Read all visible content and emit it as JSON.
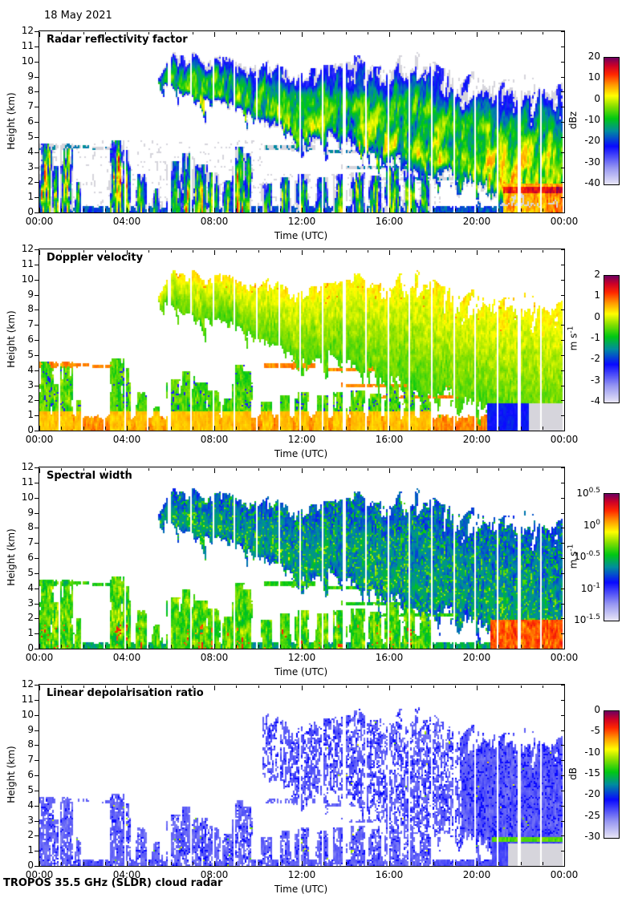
{
  "page": {
    "date": "18 May 2021",
    "footer": "TROPOS 35.5 GHz (SLDR) cloud radar"
  },
  "axes": {
    "x_label": "Time (UTC)",
    "y_label": "Height (km)",
    "x_tick_hours": [
      0,
      4,
      8,
      12,
      16,
      20,
      24
    ],
    "x_tick_labels": [
      "00:00",
      "04:00",
      "08:00",
      "12:00",
      "16:00",
      "20:00",
      "00:00"
    ],
    "x_minor_step_hours": 1,
    "y_range_km": [
      0,
      12
    ],
    "y_tick_step_km": 1
  },
  "panels": [
    {
      "id": "reflectivity",
      "title": "Radar reflectivity factor",
      "colorbar": {
        "unit": "dBz",
        "min": -40,
        "max": 20,
        "log": false,
        "tick_values": [
          20,
          10,
          0,
          -10,
          -20,
          -30,
          -40
        ]
      }
    },
    {
      "id": "velocity",
      "title": "Doppler velocity",
      "colorbar": {
        "unit": "m s⁻¹",
        "min": -4,
        "max": 2,
        "log": false,
        "tick_values": [
          2,
          1,
          0,
          -1,
          -2,
          -3,
          -4
        ]
      }
    },
    {
      "id": "width",
      "title": "Spectral width",
      "colorbar": {
        "unit": "m s⁻¹",
        "min": -1.5,
        "max": 0.5,
        "log": true,
        "tick_values": [
          0.5,
          0,
          -0.5,
          -1,
          -1.5
        ]
      }
    },
    {
      "id": "ldr",
      "title": "Linear depolarisation ratio",
      "colorbar": {
        "unit": "dB",
        "min": -30,
        "max": 0,
        "log": false,
        "tick_values": [
          0,
          -5,
          -10,
          -15,
          -20,
          -25,
          -30
        ]
      }
    }
  ],
  "chart_data": {
    "type": "heatmap",
    "description": "Four time-height cloud-radar panels for 18 May 2021: radar reflectivity factor (-40..20 dBz), Doppler velocity (-4..2 m/s), spectral width (10^-1.5..10^0.5 m/s, log scale), linear depolarisation ratio (-30..0 dB).",
    "x_range_hours": [
      0,
      24
    ],
    "y_range_km": [
      0,
      12
    ],
    "colormap_stops": [
      [
        0.0,
        230,
        228,
        246
      ],
      [
        0.13,
        150,
        150,
        242
      ],
      [
        0.3,
        10,
        10,
        255
      ],
      [
        0.42,
        0,
        140,
        160
      ],
      [
        0.52,
        0,
        200,
        20
      ],
      [
        0.62,
        140,
        225,
        0
      ],
      [
        0.7,
        255,
        255,
        0
      ],
      [
        0.79,
        255,
        150,
        0
      ],
      [
        0.87,
        255,
        40,
        0
      ],
      [
        0.94,
        205,
        0,
        40
      ],
      [
        1.0,
        115,
        0,
        95
      ]
    ],
    "undetected_grey": [
      214,
      213,
      220
    ],
    "scene": {
      "scan_gap_fraction": [
        0.9,
        0.985
      ],
      "high_cloud": {
        "start_hour": 5.4,
        "base_km": [
          [
            5.4,
            8.4
          ],
          [
            6.5,
            7.8
          ],
          [
            8,
            7.2
          ],
          [
            9.5,
            6.2
          ],
          [
            11,
            5.4
          ],
          [
            12.5,
            4.8
          ],
          [
            14,
            4.3
          ],
          [
            15,
            3.7
          ],
          [
            16,
            2.7
          ],
          [
            17,
            2.3
          ],
          [
            18.5,
            2.0
          ],
          [
            19.5,
            1.8
          ],
          [
            20.4,
            0.9
          ],
          [
            21.2,
            0.05
          ],
          [
            24,
            0
          ]
        ],
        "top_km": [
          [
            5.4,
            8.8
          ],
          [
            6,
            10.5
          ],
          [
            7,
            10.3
          ],
          [
            9,
            10.1
          ],
          [
            11,
            9.7
          ],
          [
            12,
            9.4
          ],
          [
            13,
            10.0
          ],
          [
            14,
            10.2
          ],
          [
            15,
            9.8
          ],
          [
            16,
            10.0
          ],
          [
            17,
            10.4
          ],
          [
            18,
            10.0
          ],
          [
            19,
            9.2
          ],
          [
            20,
            9.5
          ],
          [
            21,
            8.7
          ],
          [
            22,
            9.0
          ],
          [
            23,
            8.3
          ],
          [
            24,
            8.5
          ]
        ]
      },
      "convective_cells": [
        [
          0.3,
          0.45,
          4.6,
          1
        ],
        [
          0.8,
          0.3,
          3.1,
          0.8
        ],
        [
          1.25,
          0.4,
          4.3,
          0.9
        ],
        [
          1.8,
          0.25,
          2.0,
          0.6
        ],
        [
          3.55,
          0.45,
          4.8,
          1
        ],
        [
          3.95,
          0.3,
          4.1,
          0.9
        ],
        [
          4.65,
          0.35,
          2.5,
          0.7
        ],
        [
          5.35,
          0.3,
          1.6,
          0.6
        ],
        [
          6.2,
          0.5,
          3.4,
          0.8
        ],
        [
          6.8,
          0.4,
          3.9,
          0.85
        ],
        [
          7.35,
          0.45,
          3.2,
          0.8
        ],
        [
          7.95,
          0.4,
          2.7,
          0.75
        ],
        [
          8.6,
          0.3,
          2.1,
          0.7
        ],
        [
          9.15,
          0.45,
          4.4,
          1
        ],
        [
          9.5,
          0.3,
          3.9,
          0.9
        ],
        [
          10.4,
          0.35,
          1.9,
          0.65
        ],
        [
          11.2,
          0.4,
          2.3,
          0.7
        ],
        [
          12.05,
          0.4,
          2.6,
          0.7
        ],
        [
          12.9,
          0.45,
          2.3,
          0.7
        ],
        [
          13.75,
          0.4,
          2.5,
          0.7
        ],
        [
          14.6,
          0.45,
          2.7,
          0.75
        ],
        [
          15.35,
          0.4,
          2.4,
          0.7
        ],
        [
          16.15,
          0.45,
          3.1,
          0.8
        ],
        [
          16.95,
          0.4,
          2.8,
          0.75
        ],
        [
          17.6,
          0.35,
          2.5,
          0.7
        ]
      ],
      "layer_clouds": [
        [
          0,
          1.6,
          1.05,
          0.08
        ],
        [
          0,
          2.3,
          4.35,
          0.22
        ],
        [
          2.4,
          3.3,
          4.25,
          0.18
        ],
        [
          10.3,
          12.6,
          4.3,
          0.25
        ],
        [
          13.2,
          17.9,
          4.05,
          0.16
        ],
        [
          13.8,
          19.6,
          3.0,
          0.15
        ],
        [
          15.4,
          19.4,
          2.2,
          0.14
        ]
      ],
      "surface_clutter_top_km": 0.32,
      "precip_onset_hour": 20.6,
      "melting_layer_km": 1.5,
      "low_level_grey_after_hour": {
        "velocity": 22.4,
        "ldr": 21.0
      }
    }
  }
}
